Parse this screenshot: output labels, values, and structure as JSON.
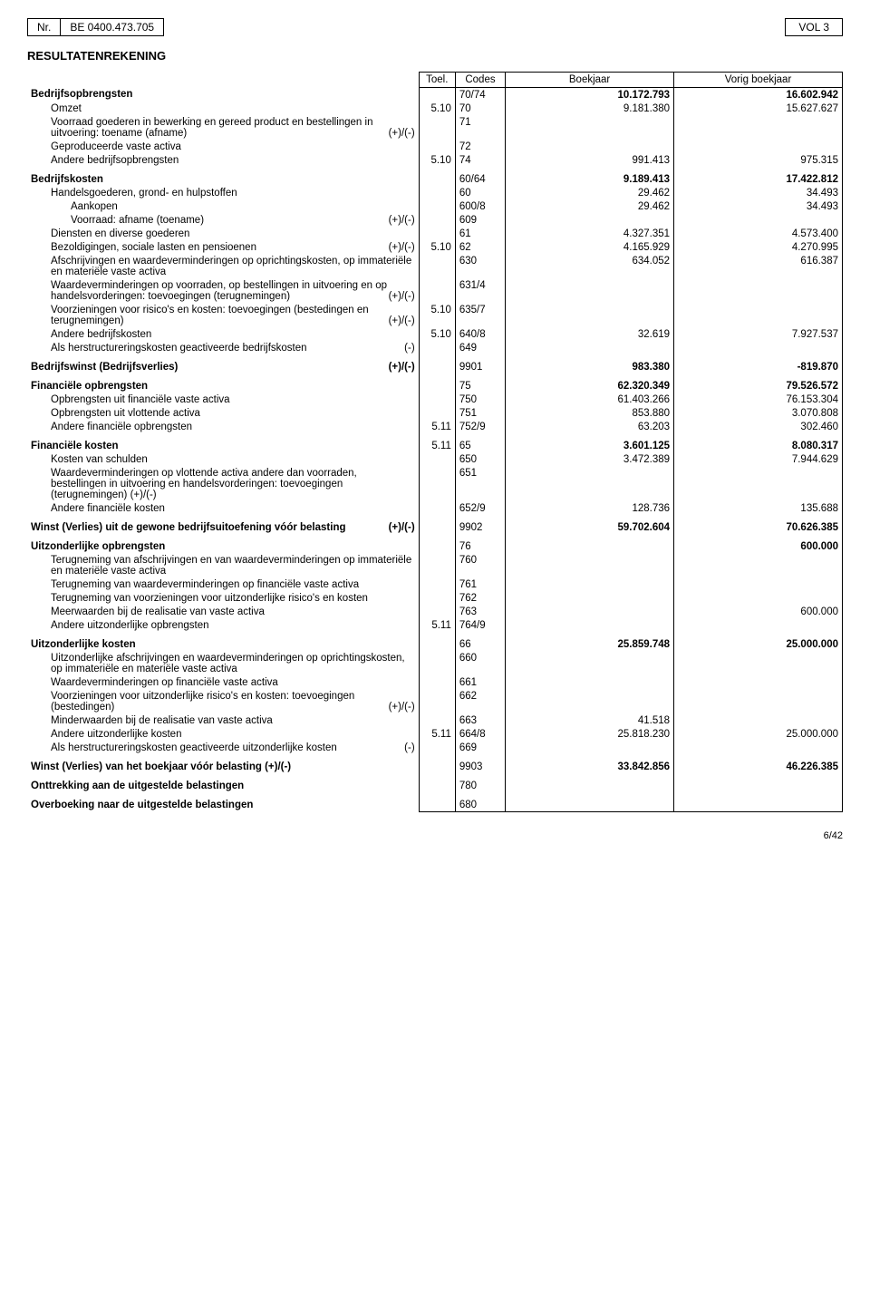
{
  "header": {
    "nr_label": "Nr.",
    "be_number": "BE 0400.473.705",
    "vol": "VOL 3"
  },
  "title": "RESULTATENREKENING",
  "table_headers": {
    "toel": "Toel.",
    "codes": "Codes",
    "boekjaar": "Boekjaar",
    "vorig": "Vorig boekjaar"
  },
  "rows": [
    {
      "label": "Bedrijfsopbrengsten",
      "bold": true,
      "sign": "",
      "toel": "",
      "code": "70/74",
      "boek": "10.172.793",
      "vorig": "16.602.942",
      "boldval": true,
      "indent": 0
    },
    {
      "label": "Omzet",
      "toel": "5.10",
      "code": "70",
      "boek": "9.181.380",
      "vorig": "15.627.627",
      "indent": 1
    },
    {
      "label": "Voorraad goederen in bewerking en gereed product en bestellingen in uitvoering: toename (afname)",
      "sign": "(+)/(-)",
      "code": "71",
      "indent": 1
    },
    {
      "label": "Geproduceerde vaste activa",
      "code": "72",
      "indent": 1
    },
    {
      "label": "Andere bedrijfsopbrengsten",
      "toel": "5.10",
      "code": "74",
      "boek": "991.413",
      "vorig": "975.315",
      "indent": 1
    },
    {
      "spacer": true
    },
    {
      "label": "Bedrijfskosten",
      "bold": true,
      "code": "60/64",
      "boek": "9.189.413",
      "vorig": "17.422.812",
      "boldval": true,
      "indent": 0
    },
    {
      "label": "Handelsgoederen, grond- en hulpstoffen",
      "code": "60",
      "boek": "29.462",
      "vorig": "34.493",
      "indent": 1
    },
    {
      "label": "Aankopen",
      "code": "600/8",
      "boek": "29.462",
      "vorig": "34.493",
      "indent": 2
    },
    {
      "label": "Voorraad: afname (toename)",
      "sign": "(+)/(-)",
      "code": "609",
      "indent": 2
    },
    {
      "label": "Diensten en diverse goederen",
      "code": "61",
      "boek": "4.327.351",
      "vorig": "4.573.400",
      "indent": 1
    },
    {
      "label": "Bezoldigingen, sociale lasten en pensioenen",
      "sign": "(+)/(-)",
      "toel": "5.10",
      "code": "62",
      "boek": "4.165.929",
      "vorig": "4.270.995",
      "indent": 1
    },
    {
      "label": "Afschrijvingen en waardeverminderingen op oprichtingskosten, op immateriële en materiële vaste activa",
      "code": "630",
      "boek": "634.052",
      "vorig": "616.387",
      "indent": 1
    },
    {
      "label": "Waardeverminderingen op voorraden, op bestellingen in uitvoering en op handelsvorderingen: toevoegingen (terugnemingen)",
      "sign": "(+)/(-)",
      "code": "631/4",
      "indent": 1
    },
    {
      "label": "Voorzieningen voor risico's en kosten: toevoegingen (bestedingen en terugnemingen)",
      "sign": "(+)/(-)",
      "toel": "5.10",
      "code": "635/7",
      "indent": 1
    },
    {
      "label": "Andere bedrijfskosten",
      "toel": "5.10",
      "code": "640/8",
      "boek": "32.619",
      "vorig": "7.927.537",
      "indent": 1
    },
    {
      "label": "Als herstructureringskosten geactiveerde bedrijfskosten",
      "sign": "(-)",
      "code": "649",
      "indent": 1
    },
    {
      "spacer": true
    },
    {
      "label": "Bedrijfswinst (Bedrijfsverlies)",
      "bold": true,
      "sign": "(+)/(-)",
      "code": "9901",
      "boek": "983.380",
      "vorig": "-819.870",
      "boldval": true,
      "indent": 0
    },
    {
      "spacer": true
    },
    {
      "label": "Financiële opbrengsten",
      "bold": true,
      "code": "75",
      "boek": "62.320.349",
      "vorig": "79.526.572",
      "boldval": true,
      "indent": 0
    },
    {
      "label": "Opbrengsten uit financiële vaste activa",
      "code": "750",
      "boek": "61.403.266",
      "vorig": "76.153.304",
      "indent": 1
    },
    {
      "label": "Opbrengsten uit vlottende activa",
      "code": "751",
      "boek": "853.880",
      "vorig": "3.070.808",
      "indent": 1
    },
    {
      "label": "Andere financiële opbrengsten",
      "toel": "5.11",
      "code": "752/9",
      "boek": "63.203",
      "vorig": "302.460",
      "indent": 1
    },
    {
      "spacer": true
    },
    {
      "label": "Financiële kosten",
      "bold": true,
      "toel": "5.11",
      "code": "65",
      "boek": "3.601.125",
      "vorig": "8.080.317",
      "boldval": true,
      "indent": 0
    },
    {
      "label": "Kosten van schulden",
      "code": "650",
      "boek": "3.472.389",
      "vorig": "7.944.629",
      "indent": 1
    },
    {
      "label": "Waardeverminderingen op vlottende activa andere dan voorraden, bestellingen in uitvoering en handelsvorderingen: toevoegingen (terugnemingen) (+)/(-)",
      "code": "651",
      "indent": 1
    },
    {
      "label": "Andere financiële kosten",
      "code": "652/9",
      "boek": "128.736",
      "vorig": "135.688",
      "indent": 1
    },
    {
      "spacer": true
    },
    {
      "label": "Winst (Verlies) uit de gewone bedrijfsuitoefening vóór belasting",
      "bold": true,
      "sign": "(+)/(-)",
      "code": "9902",
      "boek": "59.702.604",
      "vorig": "70.626.385",
      "boldval": true,
      "indent": 0
    },
    {
      "spacer": true
    },
    {
      "label": "Uitzonderlijke opbrengsten",
      "bold": true,
      "code": "76",
      "vorig": "600.000",
      "boldval": true,
      "indent": 0
    },
    {
      "label": "Terugneming van afschrijvingen en van waardeverminderingen op immateriële en materiële vaste activa",
      "code": "760",
      "indent": 1
    },
    {
      "label": "Terugneming van waardeverminderingen op financiële vaste activa",
      "code": "761",
      "indent": 1
    },
    {
      "label": "Terugneming van voorzieningen voor uitzonderlijke risico's en kosten",
      "code": "762",
      "indent": 1
    },
    {
      "label": "Meerwaarden bij de realisatie van vaste activa",
      "code": "763",
      "vorig": "600.000",
      "indent": 1
    },
    {
      "label": "Andere uitzonderlijke opbrengsten",
      "toel": "5.11",
      "code": "764/9",
      "indent": 1
    },
    {
      "spacer": true
    },
    {
      "label": "Uitzonderlijke kosten",
      "bold": true,
      "code": "66",
      "boek": "25.859.748",
      "vorig": "25.000.000",
      "boldval": true,
      "indent": 0
    },
    {
      "label": "Uitzonderlijke afschrijvingen en waardeverminderingen op oprichtingskosten, op immateriële en materiële vaste activa",
      "code": "660",
      "indent": 1
    },
    {
      "label": "Waardeverminderingen op financiële vaste activa",
      "code": "661",
      "indent": 1
    },
    {
      "label": "Voorzieningen voor uitzonderlijke risico's en kosten: toevoegingen (bestedingen)",
      "sign": "(+)/(-)",
      "code": "662",
      "indent": 1
    },
    {
      "label": "Minderwaarden bij de realisatie van vaste activa",
      "code": "663",
      "boek": "41.518",
      "indent": 1
    },
    {
      "label": "Andere uitzonderlijke kosten",
      "toel": "5.11",
      "code": "664/8",
      "boek": "25.818.230",
      "vorig": "25.000.000",
      "indent": 1
    },
    {
      "label": "Als herstructureringskosten geactiveerde uitzonderlijke kosten",
      "sign": "(-)",
      "code": "669",
      "indent": 1
    },
    {
      "spacer": true
    },
    {
      "label": "Winst (Verlies) van het boekjaar vóór belasting (+)/(-)",
      "bold": true,
      "code": "9903",
      "boek": "33.842.856",
      "vorig": "46.226.385",
      "boldval": true,
      "indent": 0
    },
    {
      "spacer": true
    },
    {
      "label": "Onttrekking aan de uitgestelde belastingen",
      "bold": true,
      "code": "780",
      "indent": 0
    },
    {
      "spacer": true
    },
    {
      "label": "Overboeking naar de uitgestelde belastingen",
      "bold": true,
      "code": "680",
      "indent": 0,
      "last": true
    }
  ],
  "footer": "6/42"
}
